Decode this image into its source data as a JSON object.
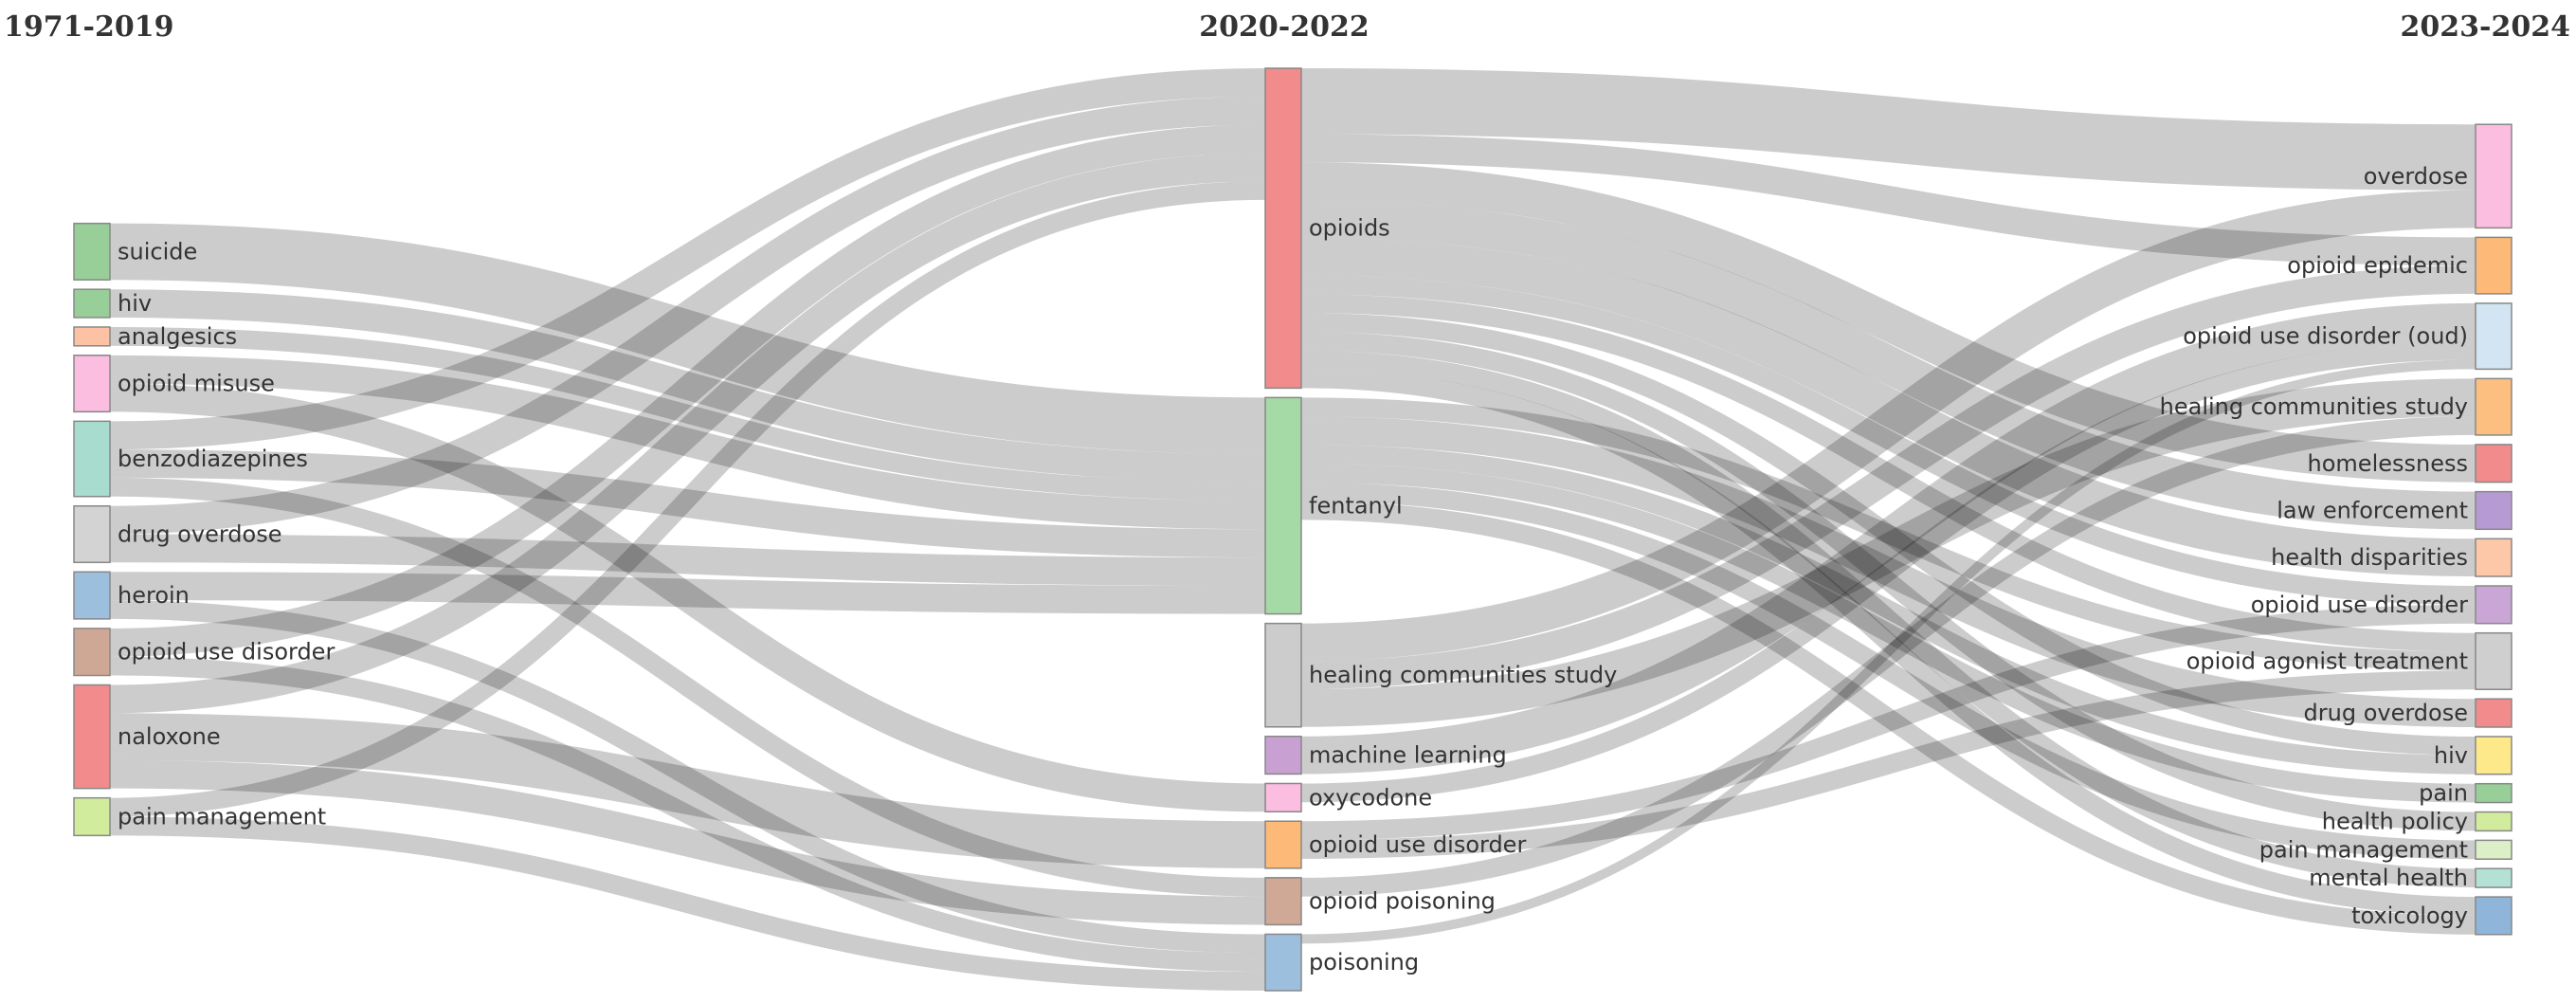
{
  "columns": [
    {
      "title": "1971-2019"
    },
    {
      "title": "2020-2022"
    },
    {
      "title": "2023-2024"
    }
  ],
  "nodes": [
    {
      "id": "a_suicide",
      "label": "suicide",
      "col": 0,
      "color": "#98cf98"
    },
    {
      "id": "a_hiv",
      "label": "hiv",
      "col": 0,
      "color": "#98cf98"
    },
    {
      "id": "a_analgesics",
      "label": "analgesics",
      "col": 0,
      "color": "#fdc2a4"
    },
    {
      "id": "a_misuse",
      "label": "opioid misuse",
      "col": 0,
      "color": "#fbbde0"
    },
    {
      "id": "a_benzo",
      "label": "benzodiazepines",
      "col": 0,
      "color": "#a8dccf"
    },
    {
      "id": "a_overdose",
      "label": "drug overdose",
      "col": 0,
      "color": "#d3d3d3"
    },
    {
      "id": "a_heroin",
      "label": "heroin",
      "col": 0,
      "color": "#9cbfde"
    },
    {
      "id": "a_oud",
      "label": "opioid use disorder",
      "col": 0,
      "color": "#cfa795"
    },
    {
      "id": "a_naloxone",
      "label": "naloxone",
      "col": 0,
      "color": "#f28b8b"
    },
    {
      "id": "a_pain",
      "label": "pain management",
      "col": 0,
      "color": "#d2ec9d"
    },
    {
      "id": "b_opioids",
      "label": "opioids",
      "col": 1,
      "color": "#f28b8b"
    },
    {
      "id": "b_fentanyl",
      "label": "fentanyl",
      "col": 1,
      "color": "#a5d9a5"
    },
    {
      "id": "b_hcs",
      "label": "healing communities study",
      "col": 1,
      "color": "#cccccc"
    },
    {
      "id": "b_ml",
      "label": "machine learning",
      "col": 1,
      "color": "#c9a0d2"
    },
    {
      "id": "b_oxy",
      "label": "oxycodone",
      "col": 1,
      "color": "#fbbde0"
    },
    {
      "id": "b_oud",
      "label": "opioid use disorder",
      "col": 1,
      "color": "#fdb977"
    },
    {
      "id": "b_poisoning_op",
      "label": "opioid poisoning",
      "col": 1,
      "color": "#d0a896"
    },
    {
      "id": "b_poisoning",
      "label": "poisoning",
      "col": 1,
      "color": "#9cbfde"
    },
    {
      "id": "c_overdose",
      "label": "overdose",
      "col": 2,
      "color": "#fbbde0"
    },
    {
      "id": "c_epidemic",
      "label": "opioid epidemic",
      "col": 2,
      "color": "#fdb977"
    },
    {
      "id": "c_oud_paren",
      "label": "opioid use disorder (oud)",
      "col": 2,
      "color": "#d3e5f2"
    },
    {
      "id": "c_hcs",
      "label": "healing communities study",
      "col": 2,
      "color": "#fdbf80"
    },
    {
      "id": "c_homeless",
      "label": "homelessness",
      "col": 2,
      "color": "#f28b8b"
    },
    {
      "id": "c_law",
      "label": "law enforcement",
      "col": 2,
      "color": "#b69ad3"
    },
    {
      "id": "c_disparities",
      "label": "health disparities",
      "col": 2,
      "color": "#fdc8a8"
    },
    {
      "id": "c_oud",
      "label": "opioid use disorder",
      "col": 2,
      "color": "#c9a6d6"
    },
    {
      "id": "c_agonist",
      "label": "opioid agonist treatment",
      "col": 2,
      "color": "#cfcfcf"
    },
    {
      "id": "c_overdose_drug",
      "label": "drug overdose",
      "col": 2,
      "color": "#f28b8b"
    },
    {
      "id": "c_hiv",
      "label": "hiv",
      "col": 2,
      "color": "#fde98a"
    },
    {
      "id": "c_pain",
      "label": "pain",
      "col": 2,
      "color": "#98cf98"
    },
    {
      "id": "c_policy",
      "label": "health policy",
      "col": 2,
      "color": "#d2ec9d"
    },
    {
      "id": "c_painmgmt",
      "label": "pain management",
      "col": 2,
      "color": "#dcf0c8"
    },
    {
      "id": "c_mental",
      "label": "mental health",
      "col": 2,
      "color": "#b3e2d5"
    },
    {
      "id": "c_tox",
      "label": "toxicology",
      "col": 2,
      "color": "#8fb6da"
    }
  ],
  "links": [
    {
      "source": "a_suicide",
      "target": "b_fentanyl",
      "value": 3
    },
    {
      "source": "a_hiv",
      "target": "b_fentanyl",
      "value": 1.5
    },
    {
      "source": "a_analgesics",
      "target": "b_fentanyl",
      "value": 1
    },
    {
      "source": "a_misuse",
      "target": "b_fentanyl",
      "value": 1.5
    },
    {
      "source": "a_misuse",
      "target": "b_oxy",
      "value": 1.5
    },
    {
      "source": "a_benzo",
      "target": "b_opioids",
      "value": 1.5
    },
    {
      "source": "a_benzo",
      "target": "b_fentanyl",
      "value": 1.5
    },
    {
      "source": "a_benzo",
      "target": "b_poisoning_op",
      "value": 1
    },
    {
      "source": "a_overdose",
      "target": "b_opioids",
      "value": 1.5
    },
    {
      "source": "a_overdose",
      "target": "b_fentanyl",
      "value": 1.5
    },
    {
      "source": "a_heroin",
      "target": "b_fentanyl",
      "value": 1.5
    },
    {
      "source": "a_heroin",
      "target": "b_poisoning",
      "value": 1
    },
    {
      "source": "a_oud",
      "target": "b_opioids",
      "value": 1.5
    },
    {
      "source": "a_oud",
      "target": "b_poisoning",
      "value": 1
    },
    {
      "source": "a_naloxone",
      "target": "b_opioids",
      "value": 1.5
    },
    {
      "source": "a_naloxone",
      "target": "b_oud",
      "value": 2.5
    },
    {
      "source": "a_naloxone",
      "target": "b_poisoning_op",
      "value": 1.5
    },
    {
      "source": "a_pain",
      "target": "b_opioids",
      "value": 1
    },
    {
      "source": "a_pain",
      "target": "b_poisoning",
      "value": 1
    },
    {
      "source": "b_opioids",
      "target": "c_overdose",
      "value": 3.5
    },
    {
      "source": "b_opioids",
      "target": "c_epidemic",
      "value": 1.5
    },
    {
      "source": "b_opioids",
      "target": "c_homeless",
      "value": 2
    },
    {
      "source": "b_opioids",
      "target": "c_disparities",
      "value": 2
    },
    {
      "source": "b_opioids",
      "target": "c_law",
      "value": 2
    },
    {
      "source": "b_opioids",
      "target": "c_oud",
      "value": 1
    },
    {
      "source": "b_opioids",
      "target": "c_agonist",
      "value": 1
    },
    {
      "source": "b_opioids",
      "target": "c_hiv",
      "value": 1
    },
    {
      "source": "b_opioids",
      "target": "c_policy",
      "value": 1
    },
    {
      "source": "b_opioids",
      "target": "c_mental",
      "value": 1
    },
    {
      "source": "b_opioids",
      "target": "c_tox",
      "value": 1
    },
    {
      "source": "b_fentanyl",
      "target": "c_overdose_drug",
      "value": 1.5
    },
    {
      "source": "b_fentanyl",
      "target": "c_pain",
      "value": 1
    },
    {
      "source": "b_fentanyl",
      "target": "c_painmgmt",
      "value": 1
    },
    {
      "source": "b_fentanyl",
      "target": "c_hiv",
      "value": 1
    },
    {
      "source": "b_fentanyl",
      "target": "c_agonist",
      "value": 1
    },
    {
      "source": "b_fentanyl",
      "target": "c_tox",
      "value": 1
    },
    {
      "source": "b_hcs",
      "target": "c_overdose",
      "value": 2
    },
    {
      "source": "b_hcs",
      "target": "c_hcs",
      "value": 2
    },
    {
      "source": "b_hcs",
      "target": "c_epidemic",
      "value": 1.5
    },
    {
      "source": "b_ml",
      "target": "c_oud_paren",
      "value": 2
    },
    {
      "source": "b_oxy",
      "target": "c_oud_paren",
      "value": 1
    },
    {
      "source": "b_oud",
      "target": "c_oud",
      "value": 1
    },
    {
      "source": "b_oud",
      "target": "c_agonist",
      "value": 1
    },
    {
      "source": "b_poisoning_op",
      "target": "c_hcs",
      "value": 1
    },
    {
      "source": "b_poisoning",
      "target": "c_oud_paren",
      "value": 0.5
    }
  ]
}
